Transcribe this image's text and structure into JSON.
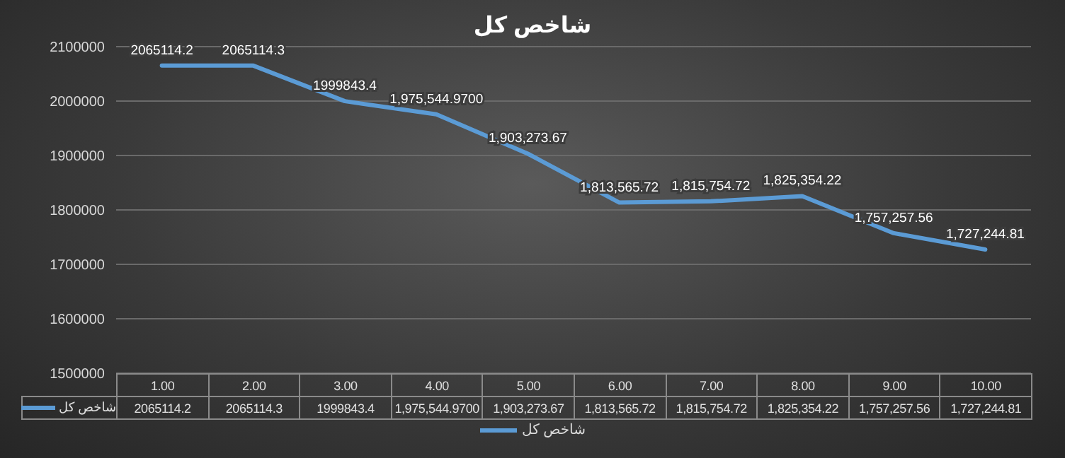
{
  "chart_data": {
    "type": "line",
    "title": "شاخص کل",
    "categories": [
      "1.00",
      "2.00",
      "3.00",
      "4.00",
      "5.00",
      "6.00",
      "7.00",
      "8.00",
      "9.00",
      "10.00"
    ],
    "series": [
      {
        "name": "شاخص کل",
        "color": "#5b9bd5",
        "values": [
          2065114.2,
          2065114.3,
          1999843.4,
          1975544.97,
          1903273.67,
          1813565.72,
          1815754.72,
          1825354.22,
          1757257.56,
          1727244.81
        ],
        "value_labels": [
          "2065114.2",
          "2065114.3",
          "1999843.4",
          "1,975,544.9700",
          "1,903,273.67",
          "1,813,565.72",
          "1,815,754.72",
          "1,825,354.22",
          "1,757,257.56",
          "1,727,244.81"
        ]
      }
    ],
    "ylim": [
      1500000,
      2100000
    ],
    "yticks": [
      1500000,
      1600000,
      1700000,
      1800000,
      1900000,
      2000000,
      2100000
    ],
    "grid": "y",
    "legend": "bottom",
    "marker": "none",
    "line_style": "solid"
  }
}
